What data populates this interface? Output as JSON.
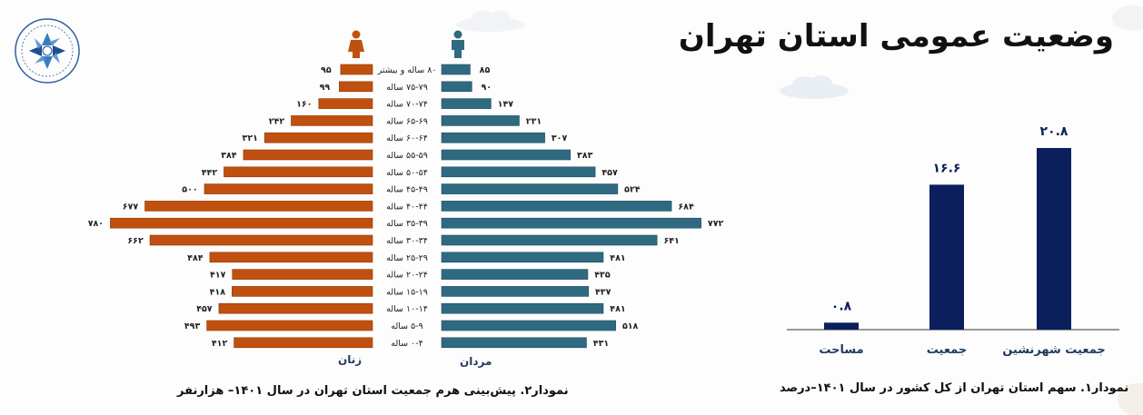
{
  "page_title": "وضعیت عمومی استان تهران",
  "colors": {
    "male": "#2f6a80",
    "female": "#c0500f",
    "share_bar": "#0b1f5c",
    "female_icon": "#c0500f",
    "male_icon": "#2f6a80"
  },
  "icons": [
    "logo-icon",
    "female-person-icon",
    "male-person-icon",
    "cloud-icon"
  ],
  "chart_data": [
    {
      "type": "bar",
      "caption": "نمودار۲. پیش‌بینی هرم جمعیت استان تهران در سال ۱۴۰۱– هزارنفر",
      "categories": [
        "۸۰ ساله و بیشتر",
        "۷۵-۷۹ ساله",
        "۷۰-۷۴ ساله",
        "۶۵-۶۹ ساله",
        "۶۰-۶۴ ساله",
        "۵۵-۵۹ ساله",
        "۵۰-۵۴ ساله",
        "۴۵-۴۹ ساله",
        "۴۰-۴۴ ساله",
        "۳۵-۳۹ ساله",
        "۳۰-۳۴ ساله",
        "۲۵-۲۹ ساله",
        "۲۰-۲۴ ساله",
        "۱۵-۱۹ ساله",
        "۱۰-۱۴ ساله",
        "۵-۹ ساله",
        "۰-۴ ساله"
      ],
      "series": [
        {
          "name": "مردان",
          "values": [
            85,
            90,
            147,
            231,
            307,
            383,
            457,
            524,
            684,
            772,
            641,
            481,
            435,
            437,
            481,
            518,
            431
          ],
          "labels": [
            "۸۵",
            "۹۰",
            "۱۴۷",
            "۲۳۱",
            "۳۰۷",
            "۳۸۳",
            "۴۵۷",
            "۵۲۴",
            "۶۸۴",
            "۷۷۲",
            "۶۴۱",
            "۴۸۱",
            "۴۳۵",
            "۴۳۷",
            "۴۸۱",
            "۵۱۸",
            "۴۳۱"
          ]
        },
        {
          "name": "زنان",
          "values": [
            95,
            99,
            160,
            242,
            321,
            384,
            442,
            500,
            677,
            780,
            662,
            484,
            417,
            418,
            457,
            493,
            412
          ],
          "labels": [
            "۹۵",
            "۹۹",
            "۱۶۰",
            "۲۴۲",
            "۳۲۱",
            "۳۸۴",
            "۴۴۲",
            "۵۰۰",
            "۶۷۷",
            "۷۸۰",
            "۶۶۲",
            "۴۸۴",
            "۴۱۷",
            "۴۱۸",
            "۴۵۷",
            "۴۹۳",
            "۴۱۲"
          ]
        }
      ]
    },
    {
      "type": "bar",
      "caption": "نمودار۱. سهم استان تهران از کل کشور در سال ۱۴۰۱–درصد",
      "categories": [
        "مساحت",
        "جمعیت",
        "جمعیت شهرنشین"
      ],
      "values": [
        0.8,
        16.6,
        20.8
      ],
      "value_labels": [
        "۰.۸",
        "۱۶.۶",
        "۲۰.۸"
      ]
    }
  ]
}
